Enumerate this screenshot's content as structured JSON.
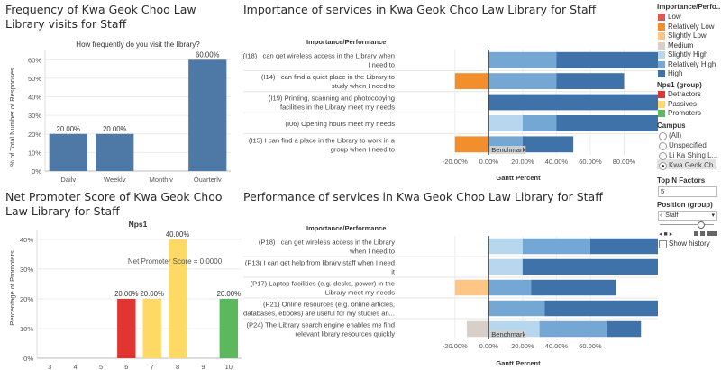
{
  "titles": {
    "freq": "Frequency of Kwa Geok Choo Law Library visits for Staff",
    "importance": "Importance of services in Kwa Geok Choo Law Library for Staff",
    "nps": "Net Promoter Score of Kwa Geok Choo Law Library for Staff",
    "performance": "Performance of services in Kwa Geok Choo Law Library for Staff"
  },
  "chart_data": [
    {
      "type": "bar",
      "subtitle": "How frequently do you visit the library?",
      "ylabel": "% of Total Number of Responses",
      "categories": [
        "Daily",
        "Weekly",
        "Monthly",
        "Quarterly"
      ],
      "values": [
        20,
        20,
        0,
        60
      ],
      "labels": [
        "20.00%",
        "20.00%",
        "",
        "60.00%"
      ],
      "yticks": [
        "0%",
        "10%",
        "20%",
        "30%",
        "40%",
        "50%",
        "60%"
      ],
      "ylim": [
        0,
        65
      ],
      "color": "#4e79a7"
    },
    {
      "type": "bar",
      "subtitle": "Nps1",
      "ylabel": "Percentage of Promoters",
      "annotation": "Net Promoter Score = 0.0000",
      "categories": [
        "3",
        "4",
        "5",
        "6",
        "7",
        "8",
        "9",
        "10"
      ],
      "values": [
        0,
        0,
        0,
        20,
        20,
        40,
        0,
        20
      ],
      "labels": [
        "",
        "",
        "",
        "20.00%",
        "20.00%",
        "40.00%",
        "",
        "20.00%"
      ],
      "colors": [
        "",
        "",
        "",
        "#e03531",
        "#ffd966",
        "#ffd966",
        "",
        "#5cb85c"
      ],
      "yticks": [
        "0%",
        "10%",
        "20%",
        "30%",
        "40%"
      ],
      "ylim": [
        0,
        43
      ]
    },
    {
      "type": "bar",
      "subtitle": "Importance/Performance",
      "xlabel": "Gantt Percent",
      "xticks": [
        "-20.00%",
        "0.00%",
        "20.00%",
        "40.00%",
        "60.00%",
        "80.00%"
      ],
      "xlim": [
        -30,
        100
      ],
      "reference_label": "Benchmark",
      "rows": [
        {
          "label": [
            "(I18) I can get wireless access in the Library when",
            "I need to"
          ],
          "segments": [
            {
              "start": 0,
              "value": 40,
              "level": "Relatively High"
            },
            {
              "start": 40,
              "value": 60,
              "level": "High"
            }
          ]
        },
        {
          "label": [
            "(I14) I can find a quiet place in the Library to",
            "study when I need to"
          ],
          "segments": [
            {
              "start": -20,
              "value": 20,
              "level": "Relatively Low"
            },
            {
              "start": 0,
              "value": 40,
              "level": "Relatively High"
            },
            {
              "start": 40,
              "value": 40,
              "level": "High"
            }
          ]
        },
        {
          "label": [
            "(I19) Printing, scanning and photocopying",
            "facilities in the Library meet my needs"
          ],
          "segments": [
            {
              "start": 0,
              "value": 100,
              "level": "High"
            }
          ]
        },
        {
          "label": [
            "(I06) Opening hours meet my needs"
          ],
          "segments": [
            {
              "start": 0,
              "value": 20,
              "level": "Slightly High"
            },
            {
              "start": 20,
              "value": 20,
              "level": "Relatively High"
            },
            {
              "start": 40,
              "value": 60,
              "level": "High"
            }
          ]
        },
        {
          "label": [
            "(I15) I can find a place in the Library to work in a",
            "group when I need to"
          ],
          "segments": [
            {
              "start": -20,
              "value": 20,
              "level": "Relatively Low"
            },
            {
              "start": 0,
              "value": 20,
              "level": "Relatively High"
            },
            {
              "start": 20,
              "value": 30,
              "level": "High"
            }
          ]
        }
      ]
    },
    {
      "type": "bar",
      "subtitle": "Importance/Performance",
      "xlabel": "Gantt Percent",
      "xticks": [
        "-20.00%",
        "0.00%",
        "20.00%",
        "40.00%",
        "60.00%"
      ],
      "xlim": [
        -30,
        100
      ],
      "reference_label": "Benchmark",
      "rows": [
        {
          "label": [
            "(P18) I can get wireless access in the Library",
            "when I need to"
          ],
          "segments": [
            {
              "start": 0,
              "value": 20,
              "level": "Slightly High"
            },
            {
              "start": 20,
              "value": 40,
              "level": "Relatively High"
            },
            {
              "start": 60,
              "value": 40,
              "level": "High"
            }
          ]
        },
        {
          "label": [
            "(P13) I can get help from library staff when I need",
            "it"
          ],
          "segments": [
            {
              "start": 0,
              "value": 20,
              "level": "Slightly High"
            },
            {
              "start": 20,
              "value": 80,
              "level": "High"
            }
          ]
        },
        {
          "label": [
            "(P17) Laptop facilities (e.g. desks, power) in the",
            "Library meet my needs"
          ],
          "segments": [
            {
              "start": -20,
              "value": 20,
              "level": "Slightly Low"
            },
            {
              "start": 0,
              "value": 25,
              "level": "Relatively High"
            },
            {
              "start": 25,
              "value": 50,
              "level": "High"
            }
          ]
        },
        {
          "label": [
            "(P21) Online resources (e.g. online articles,",
            "databases, ebooks) are useful for my studies an..."
          ],
          "segments": [
            {
              "start": 0,
              "value": 33,
              "level": "Relatively High"
            },
            {
              "start": 33,
              "value": 67,
              "level": "High"
            }
          ]
        },
        {
          "label": [
            "(P24) The Library search engine enables me find",
            "relevant library resources quickly"
          ],
          "segments": [
            {
              "start": -13,
              "value": 13,
              "level": "Medium"
            },
            {
              "start": 0,
              "value": 30,
              "level": "Slightly High"
            },
            {
              "start": 30,
              "value": 40,
              "level": "Relatively High"
            },
            {
              "start": 70,
              "value": 20,
              "level": "High"
            }
          ]
        }
      ]
    }
  ],
  "level_colors": {
    "Low": "#e15759",
    "Relatively Low": "#f28e2b",
    "Slightly Low": "#ffc585",
    "Medium": "#d8cfc9",
    "Slightly High": "#b6d7ed",
    "Relatively High": "#74a7d3",
    "High": "#3f72a8"
  },
  "legend": {
    "title": "Importance/Perfo...",
    "items": [
      {
        "label": "Low",
        "color": "#e15759"
      },
      {
        "label": "Relatively Low",
        "color": "#f28e2b"
      },
      {
        "label": "Slightly Low",
        "color": "#ffc585"
      },
      {
        "label": "Medium",
        "color": "#d8cfc9"
      },
      {
        "label": "Slightly High",
        "color": "#b6d7ed"
      },
      {
        "label": "Relatively High",
        "color": "#74a7d3"
      },
      {
        "label": "High",
        "color": "#3f72a8"
      }
    ],
    "nps_title": "Nps1 (group)",
    "nps_items": [
      {
        "label": "Detractors",
        "color": "#e03531"
      },
      {
        "label": "Passives",
        "color": "#ffd966"
      },
      {
        "label": "Promoters",
        "color": "#5cb85c"
      }
    ]
  },
  "filters": {
    "campus_title": "Campus",
    "campus_options": [
      "(All)",
      "Unspecified",
      "Li Ka Shing L...",
      "Kwa Geok Ch..."
    ],
    "campus_selected": 3,
    "topn_title": "Top N Factors",
    "topn_value": "5",
    "position_title": "Position (group)",
    "position_value": "Staff",
    "show_history": "Show history"
  }
}
